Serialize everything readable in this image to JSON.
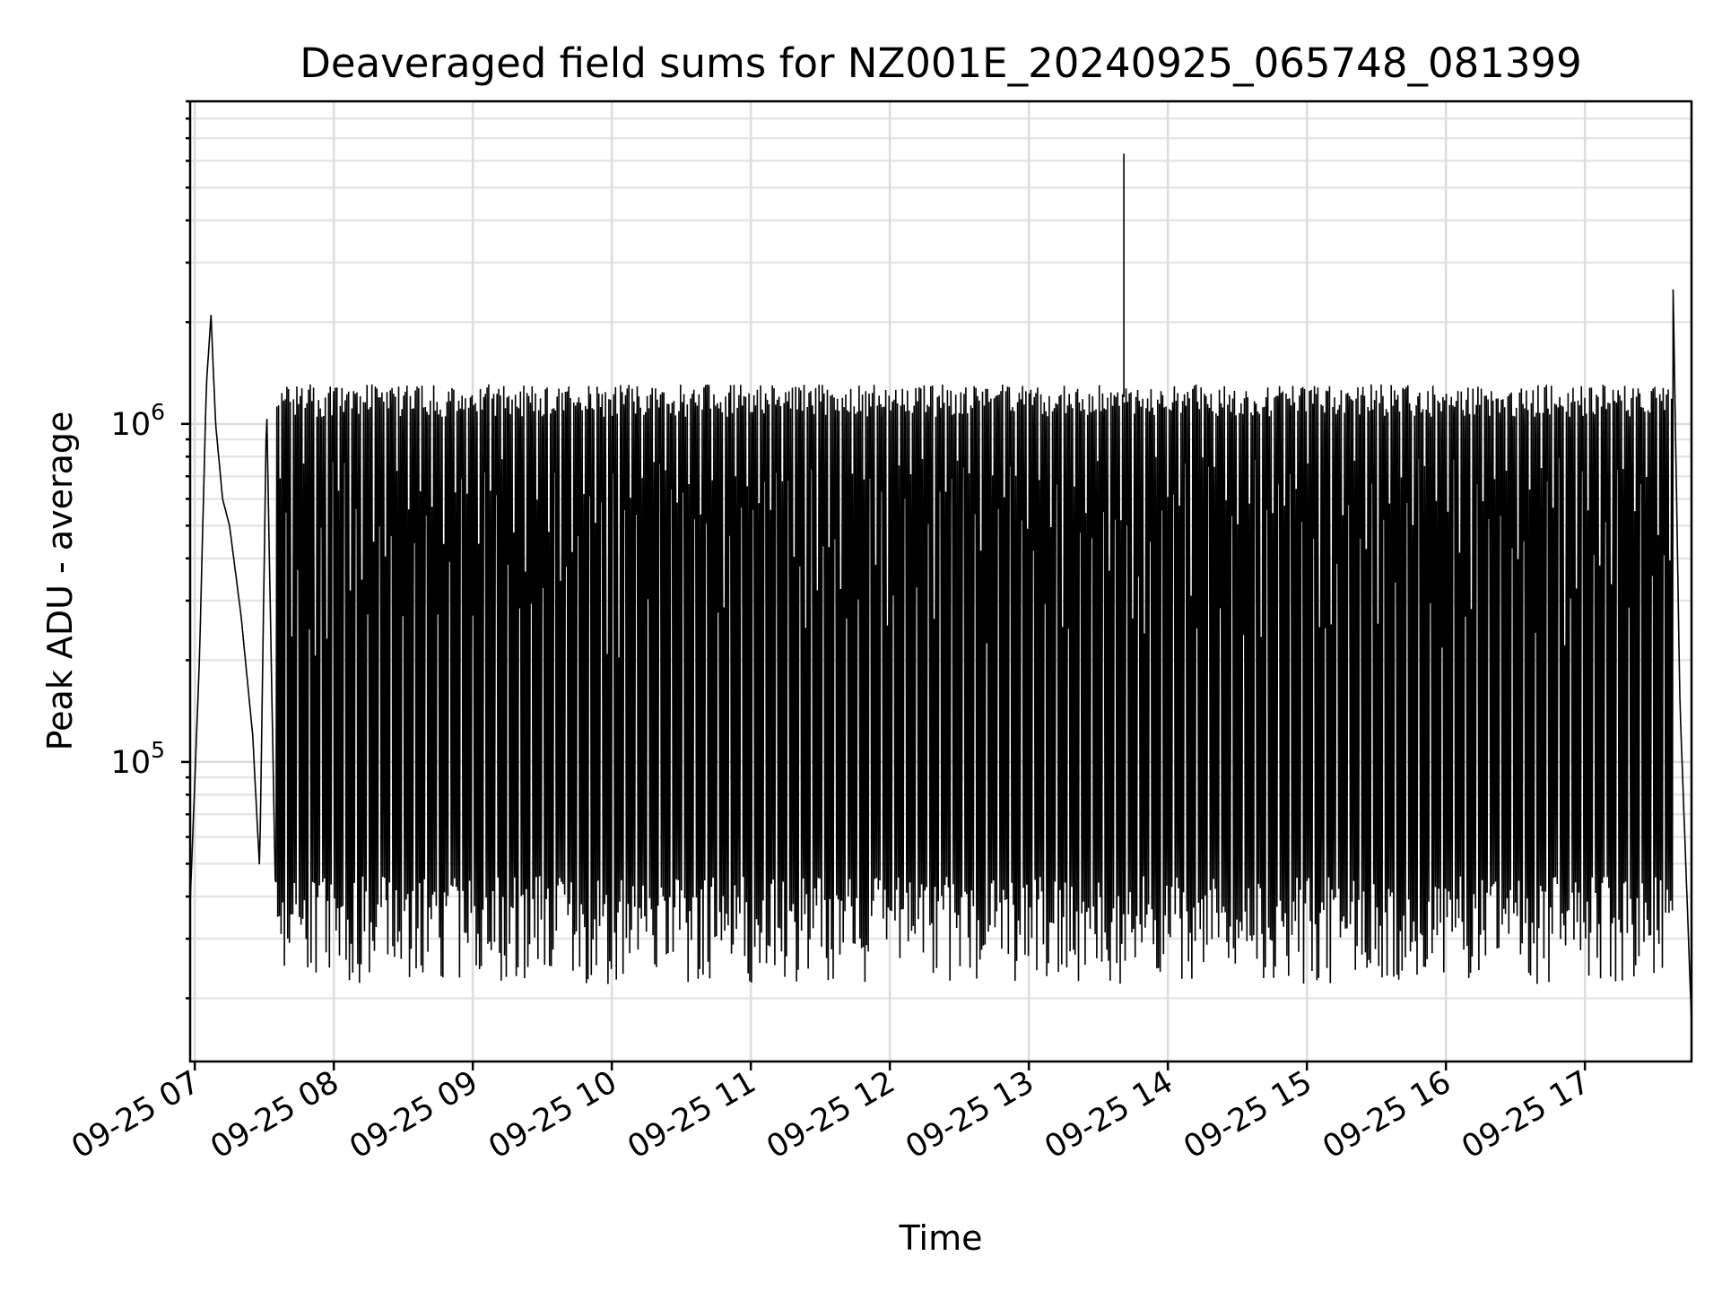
{
  "chart_data": {
    "type": "line",
    "title": "Deaveraged field sums for NZ001E_20240925_065748_081399",
    "xlabel": "Time",
    "ylabel": "Peak ADU - average",
    "y_scale": "log",
    "ylim": [
      13000,
      9000000
    ],
    "xlim": [
      "2024-09-25 06:58",
      "2024-09-25 17:46"
    ],
    "x_ticks": [
      "09-25 07",
      "09-25 08",
      "09-25 09",
      "09-25 10",
      "09-25 11",
      "09-25 12",
      "09-25 13",
      "09-25 14",
      "09-25 15",
      "09-25 16",
      "09-25 17"
    ],
    "x_tick_times": [
      "2024-09-25 07:00",
      "2024-09-25 08:00",
      "2024-09-25 09:00",
      "2024-09-25 10:00",
      "2024-09-25 11:00",
      "2024-09-25 12:00",
      "2024-09-25 13:00",
      "2024-09-25 14:00",
      "2024-09-25 15:00",
      "2024-09-25 16:00",
      "2024-09-25 17:00"
    ],
    "y_ticks": [
      {
        "base": "10",
        "exp": "5",
        "value": 100000
      },
      {
        "base": "10",
        "exp": "6",
        "value": 1000000
      }
    ],
    "grid": true,
    "line_color": "#000000",
    "series": [
      {
        "x": [
          "2024-09-25 06:58",
          "2024-09-25 07:02",
          "2024-09-25 07:05",
          "2024-09-25 07:07",
          "2024-09-25 07:09",
          "2024-09-25 07:12",
          "2024-09-25 07:15",
          "2024-09-25 07:20",
          "2024-09-25 07:25",
          "2024-09-25 07:28",
          "2024-09-25 07:31",
          "2024-09-25 07:35",
          "2024-09-25 07:42",
          "2024-09-25 07:52",
          "2024-09-25 08:05",
          "2024-09-25 08:25",
          "2024-09-25 08:45",
          "2024-09-25 09:05",
          "2024-09-25 09:25",
          "2024-09-25 09:45",
          "2024-09-25 10:05",
          "2024-09-25 10:25",
          "2024-09-25 10:45",
          "2024-09-25 11:05",
          "2024-09-25 11:25",
          "2024-09-25 11:45",
          "2024-09-25 12:05",
          "2024-09-25 12:25",
          "2024-09-25 12:45",
          "2024-09-25 13:05",
          "2024-09-25 13:25",
          "2024-09-25 13:41",
          "2024-09-25 13:55",
          "2024-09-25 14:15",
          "2024-09-25 14:35",
          "2024-09-25 14:55",
          "2024-09-25 15:15",
          "2024-09-25 15:35",
          "2024-09-25 15:55",
          "2024-09-25 16:15",
          "2024-09-25 16:35",
          "2024-09-25 16:55",
          "2024-09-25 17:15",
          "2024-09-25 17:35",
          "2024-09-25 17:38",
          "2024-09-25 17:41",
          "2024-09-25 17:46"
        ],
        "y": [
          38000,
          200000,
          1300000,
          2100000,
          1000000,
          600000,
          500000,
          270000,
          120000,
          48000,
          1150000,
          35000,
          1200000,
          30000,
          1200000,
          28000,
          1250000,
          25000,
          1300000,
          22000,
          1250000,
          28000,
          1280000,
          30000,
          1300000,
          27000,
          1250000,
          30000,
          1250000,
          28000,
          1220000,
          6300000,
          30000,
          1200000,
          24000,
          1200000,
          25000,
          1300000,
          45000,
          1500000,
          60000,
          1450000,
          80000,
          1300000,
          2700000,
          150000,
          17000
        ]
      }
    ]
  }
}
